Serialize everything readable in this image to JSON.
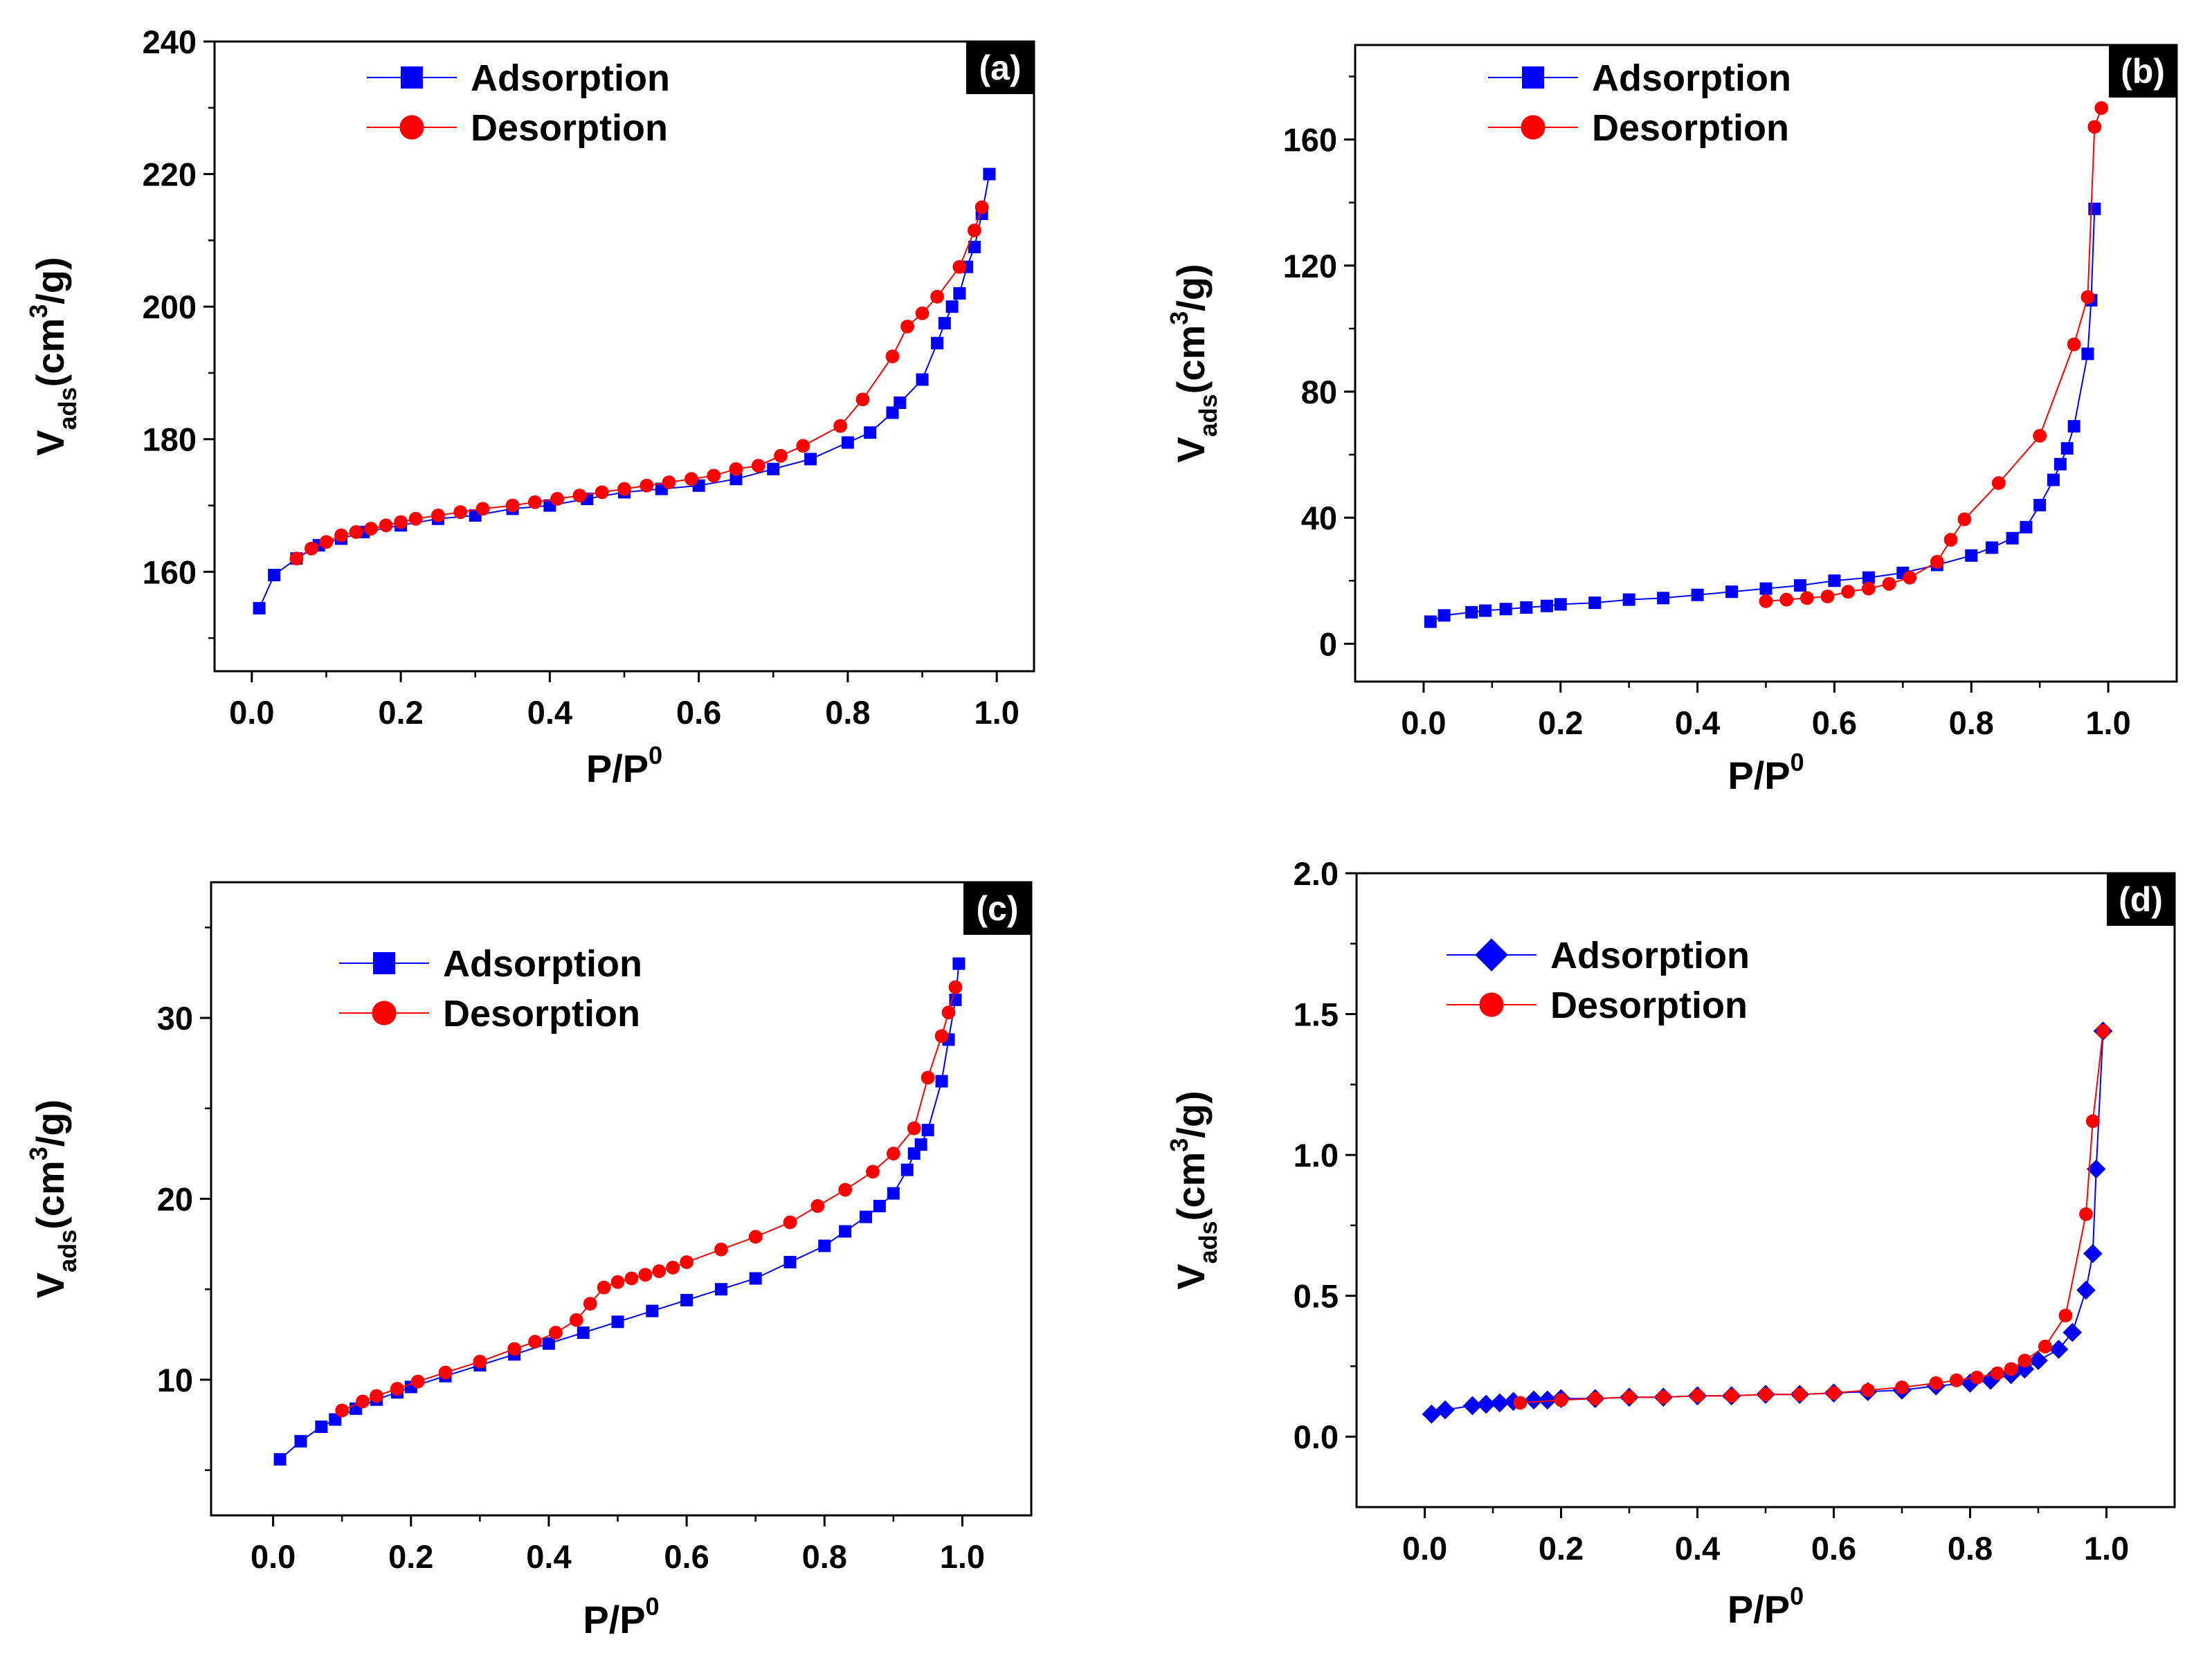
{
  "chart_data": [
    {
      "type": "line",
      "panel_label": "(a)",
      "xlabel": "P/P",
      "xlabel_sup": "0",
      "ylabel": "V",
      "ylabel_sub": "ads",
      "ylabel_unit": "(cm",
      "ylabel_unit_sup": "3",
      "ylabel_unit_end": "/g)",
      "xlim": [
        -0.05,
        1.05
      ],
      "ylim": [
        145,
        240
      ],
      "xticks": [
        0.0,
        0.2,
        0.4,
        0.6,
        0.8,
        1.0
      ],
      "xtick_labels": [
        "0.0",
        "0.2",
        "0.4",
        "0.6",
        "0.8",
        "1.0"
      ],
      "yticks": [
        160,
        180,
        200,
        220,
        240
      ],
      "ytick_labels": [
        "160",
        "180",
        "200",
        "220",
        "240"
      ],
      "legend_position": "top-left",
      "series": [
        {
          "name": "Adsorption",
          "color": "#0000ff",
          "marker": "square",
          "x": [
            0.01,
            0.03,
            0.06,
            0.09,
            0.12,
            0.15,
            0.2,
            0.25,
            0.3,
            0.35,
            0.4,
            0.45,
            0.5,
            0.55,
            0.6,
            0.65,
            0.7,
            0.75,
            0.8,
            0.83,
            0.86,
            0.87,
            0.9,
            0.92,
            0.93,
            0.94,
            0.95,
            0.96,
            0.97,
            0.98,
            0.99
          ],
          "y": [
            154.5,
            159.5,
            162,
            164,
            165,
            166,
            167,
            168,
            168.5,
            169.5,
            170,
            171,
            172,
            172.5,
            173,
            174,
            175.5,
            177,
            179.5,
            181,
            184,
            185.5,
            189,
            194.5,
            197.5,
            200,
            202,
            206,
            209,
            214,
            220
          ]
        },
        {
          "name": "Desorption",
          "color": "#ff0000",
          "marker": "circle",
          "x": [
            0.06,
            0.08,
            0.1,
            0.12,
            0.14,
            0.16,
            0.18,
            0.2,
            0.22,
            0.25,
            0.28,
            0.31,
            0.35,
            0.38,
            0.41,
            0.44,
            0.47,
            0.5,
            0.53,
            0.56,
            0.59,
            0.62,
            0.65,
            0.68,
            0.71,
            0.74,
            0.79,
            0.82,
            0.86,
            0.88,
            0.9,
            0.92,
            0.95,
            0.97,
            0.98
          ],
          "y": [
            162,
            163.5,
            164.5,
            165.5,
            166,
            166.5,
            167,
            167.5,
            168,
            168.5,
            169,
            169.5,
            170,
            170.5,
            171,
            171.5,
            172,
            172.5,
            173,
            173.5,
            174,
            174.5,
            175.5,
            176,
            177.5,
            179,
            182,
            186,
            192.5,
            197,
            199,
            201.5,
            206,
            211.5,
            215
          ]
        }
      ]
    },
    {
      "type": "line",
      "panel_label": "(b)",
      "xlabel": "P/P",
      "xlabel_sup": "0",
      "ylabel": "V",
      "ylabel_sub": "ads",
      "ylabel_unit": "(cm",
      "ylabel_unit_sup": "3",
      "ylabel_unit_end": "/g)",
      "xlim": [
        -0.1,
        1.1
      ],
      "ylim": [
        -12,
        190
      ],
      "xticks": [
        0.0,
        0.2,
        0.4,
        0.6,
        0.8,
        1.0
      ],
      "xtick_labels": [
        "0.0",
        "0.2",
        "0.4",
        "0.6",
        "0.8",
        "1.0"
      ],
      "yticks": [
        0,
        40,
        80,
        120,
        160
      ],
      "ytick_labels": [
        "0",
        "40",
        "80",
        "120",
        "160"
      ],
      "legend_position": "top-left",
      "series": [
        {
          "name": "Adsorption",
          "color": "#0000ff",
          "marker": "square",
          "x": [
            0.01,
            0.03,
            0.07,
            0.09,
            0.12,
            0.15,
            0.18,
            0.2,
            0.25,
            0.3,
            0.35,
            0.4,
            0.45,
            0.5,
            0.55,
            0.6,
            0.65,
            0.7,
            0.75,
            0.8,
            0.83,
            0.86,
            0.88,
            0.9,
            0.92,
            0.93,
            0.94,
            0.95,
            0.97,
            0.975,
            0.98
          ],
          "y": [
            7,
            9,
            10,
            10.5,
            11,
            11.5,
            12,
            12.5,
            13,
            14,
            14.5,
            15.5,
            16.5,
            17.5,
            18.5,
            20,
            21,
            22.5,
            25,
            28,
            30.5,
            33.5,
            37,
            44,
            52,
            57,
            62,
            69,
            92,
            109,
            138
          ]
        },
        {
          "name": "Desorption",
          "color": "#ff0000",
          "marker": "circle",
          "x": [
            0.5,
            0.53,
            0.56,
            0.59,
            0.62,
            0.65,
            0.68,
            0.71,
            0.75,
            0.77,
            0.79,
            0.84,
            0.9,
            0.95,
            0.97,
            0.98,
            0.99
          ],
          "y": [
            13.5,
            14,
            14.5,
            15,
            16.5,
            17.5,
            19,
            21,
            26,
            33,
            39.5,
            51,
            66,
            95,
            110,
            164,
            170
          ]
        }
      ]
    },
    {
      "type": "line",
      "panel_label": "(c)",
      "xlabel": "P/P",
      "xlabel_sup": "0",
      "ylabel": "V",
      "ylabel_sub": "ads",
      "ylabel_unit": "(cm",
      "ylabel_unit_sup": "3",
      "ylabel_unit_end": "/g)",
      "xlim": [
        -0.09,
        1.1
      ],
      "ylim": [
        2.5,
        37.5
      ],
      "xticks": [
        0.0,
        0.2,
        0.4,
        0.6,
        0.8,
        1.0
      ],
      "xtick_labels": [
        "0.0",
        "0.2",
        "0.4",
        "0.6",
        "0.8",
        "1.0"
      ],
      "yticks": [
        10,
        20,
        30
      ],
      "ytick_labels": [
        "10",
        "20",
        "30"
      ],
      "legend_position": "top-left",
      "series": [
        {
          "name": "Adsorption",
          "color": "#0000ff",
          "marker": "square",
          "x": [
            0.01,
            0.04,
            0.07,
            0.09,
            0.12,
            0.15,
            0.18,
            0.2,
            0.25,
            0.3,
            0.35,
            0.4,
            0.45,
            0.5,
            0.55,
            0.6,
            0.65,
            0.7,
            0.75,
            0.8,
            0.83,
            0.86,
            0.88,
            0.9,
            0.92,
            0.93,
            0.94,
            0.95,
            0.97,
            0.98,
            0.99,
            0.995
          ],
          "y": [
            5.6,
            6.6,
            7.4,
            7.8,
            8.4,
            8.9,
            9.3,
            9.6,
            10.2,
            10.8,
            11.4,
            12,
            12.6,
            13.2,
            13.8,
            14.4,
            15,
            15.6,
            16.5,
            17.4,
            18.2,
            19,
            19.6,
            20.3,
            21.6,
            22.5,
            23,
            23.8,
            26.5,
            28.8,
            31,
            33
          ]
        },
        {
          "name": "Desorption",
          "color": "#ff0000",
          "marker": "circle",
          "x": [
            0.1,
            0.13,
            0.15,
            0.18,
            0.21,
            0.25,
            0.3,
            0.35,
            0.38,
            0.41,
            0.44,
            0.46,
            0.48,
            0.5,
            0.52,
            0.54,
            0.56,
            0.58,
            0.6,
            0.65,
            0.7,
            0.75,
            0.79,
            0.83,
            0.87,
            0.9,
            0.93,
            0.95,
            0.97,
            0.98,
            0.99
          ],
          "y": [
            8.3,
            8.8,
            9.1,
            9.5,
            9.9,
            10.4,
            11,
            11.7,
            12.1,
            12.6,
            13.3,
            14.2,
            15.1,
            15.4,
            15.6,
            15.8,
            16,
            16.2,
            16.5,
            17.2,
            17.9,
            18.7,
            19.6,
            20.5,
            21.5,
            22.5,
            23.9,
            26.7,
            29,
            30.3,
            31.7
          ]
        }
      ]
    },
    {
      "type": "line",
      "panel_label": "(d)",
      "xlabel": "P/P",
      "xlabel_sup": "0",
      "ylabel": "V",
      "ylabel_sub": "ads",
      "ylabel_unit": "(cm",
      "ylabel_unit_sup": "3",
      "ylabel_unit_end": "/g)",
      "xlim": [
        -0.1,
        1.1
      ],
      "ylim": [
        -0.25,
        2.0
      ],
      "xticks": [
        0.0,
        0.2,
        0.4,
        0.6,
        0.8,
        1.0
      ],
      "xtick_labels": [
        "0.0",
        "0.2",
        "0.4",
        "0.6",
        "0.8",
        "1.0"
      ],
      "yticks": [
        0.0,
        0.5,
        1.0,
        1.5,
        2.0
      ],
      "ytick_labels": [
        "0.0",
        "0.5",
        "1.0",
        "1.5",
        "2.0"
      ],
      "legend_position": "top-left",
      "series": [
        {
          "name": "Adsorption",
          "color": "#0000ff",
          "marker": "diamond",
          "x": [
            0.01,
            0.03,
            0.07,
            0.09,
            0.11,
            0.13,
            0.16,
            0.18,
            0.2,
            0.25,
            0.3,
            0.35,
            0.4,
            0.45,
            0.5,
            0.55,
            0.6,
            0.65,
            0.7,
            0.75,
            0.8,
            0.83,
            0.86,
            0.88,
            0.9,
            0.93,
            0.95,
            0.97,
            0.98,
            0.985,
            0.995
          ],
          "y": [
            0.08,
            0.095,
            0.11,
            0.115,
            0.12,
            0.125,
            0.13,
            0.13,
            0.135,
            0.135,
            0.14,
            0.14,
            0.145,
            0.145,
            0.15,
            0.15,
            0.155,
            0.16,
            0.165,
            0.18,
            0.19,
            0.2,
            0.22,
            0.24,
            0.27,
            0.31,
            0.37,
            0.52,
            0.65,
            0.95,
            1.44
          ]
        },
        {
          "name": "Desorption",
          "color": "#ff0000",
          "marker": "circle",
          "x": [
            0.14,
            0.2,
            0.25,
            0.3,
            0.35,
            0.4,
            0.45,
            0.5,
            0.55,
            0.6,
            0.65,
            0.7,
            0.75,
            0.78,
            0.81,
            0.84,
            0.86,
            0.88,
            0.91,
            0.94,
            0.97,
            0.98,
            0.995
          ],
          "y": [
            0.12,
            0.13,
            0.135,
            0.14,
            0.14,
            0.145,
            0.145,
            0.15,
            0.15,
            0.155,
            0.165,
            0.175,
            0.19,
            0.2,
            0.21,
            0.225,
            0.24,
            0.27,
            0.32,
            0.43,
            0.79,
            1.12,
            1.44
          ]
        }
      ]
    }
  ]
}
